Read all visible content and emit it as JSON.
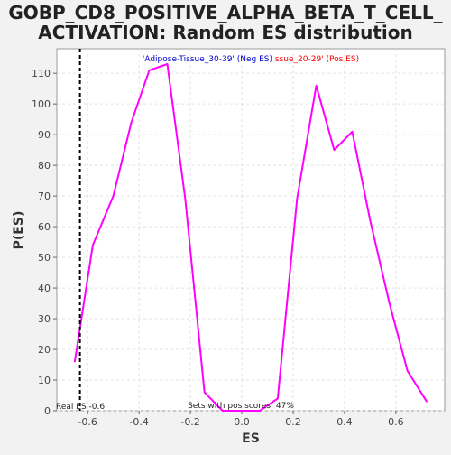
{
  "chart_data": {
    "type": "line",
    "title_line1": "GOBP_CD8_POSITIVE_ALPHA_BETA_T_CELL_",
    "title_line2": "ACTIVATION: Random ES distribution",
    "xlabel": "ES",
    "ylabel": "P(ES)",
    "xlim": [
      -0.72,
      0.79
    ],
    "ylim": [
      0,
      118
    ],
    "xticks": [
      -0.6,
      -0.4,
      -0.2,
      0.0,
      0.2,
      0.4,
      0.6
    ],
    "xtick_labels": [
      "-0.6",
      "-0.4",
      "-0.2",
      "0.0",
      "0.2",
      "0.4",
      "0.6"
    ],
    "yticks": [
      0,
      10,
      20,
      30,
      40,
      50,
      60,
      70,
      80,
      90,
      100,
      110
    ],
    "grid": true,
    "series": [
      {
        "color": "#ff00ff",
        "x": [
          -0.65,
          -0.58,
          -0.5,
          -0.43,
          -0.36,
          -0.29,
          -0.22,
          -0.145,
          -0.075,
          0.0,
          0.07,
          0.14,
          0.215,
          0.29,
          0.36,
          0.43,
          0.5,
          0.575,
          0.645,
          0.72
        ],
        "y": [
          16,
          54,
          70,
          94,
          111,
          113,
          69,
          6,
          0,
          0,
          0,
          4,
          69,
          106,
          85,
          91,
          62,
          35,
          13,
          3
        ]
      }
    ],
    "real_es": -0.63,
    "real_es_label": "Real ES -0.6",
    "legend_neg": "'Adipose-Tissue_30-39' (Neg ES)",
    "legend_pos": "ssue_20-29' (Pos ES)",
    "legend_neg_color": "#0000cc",
    "legend_pos_color": "#ff0000",
    "footer_note": "Sets with pos scores: 47%"
  }
}
